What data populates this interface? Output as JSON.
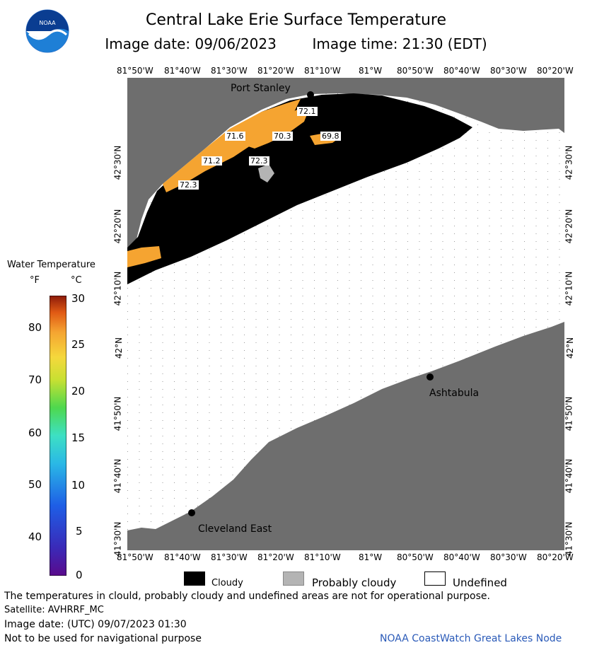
{
  "header": {
    "title": "Central Lake Erie Surface Temperature",
    "subtitle_date": "Image date: 09/06/2023",
    "subtitle_time": "Image time: 21:30 (EDT)",
    "logo_text": "NOAA"
  },
  "map": {
    "longitudes": [
      "81°50'W",
      "81°40'W",
      "81°30'W",
      "81°20'W",
      "81°10'W",
      "81°W",
      "80°50'W",
      "80°40'W",
      "80°30'W",
      "80°20'W"
    ],
    "latitudes": [
      "42°30'N",
      "42°20'N",
      "42°10'N",
      "42°N",
      "41°50'N",
      "41°40'N",
      "41°30'N"
    ],
    "cities": [
      "Port Stanley",
      "Ashtabula",
      "Cleveland East"
    ],
    "temperature_labels": [
      "72.1",
      "71.6",
      "70.3",
      "69.8",
      "71.2",
      "72.3",
      "72.3"
    ]
  },
  "legend": {
    "title": "Water Temperature",
    "unit_f": "°F",
    "unit_c": "°C",
    "fahrenheit_ticks": [
      "80",
      "70",
      "60",
      "50",
      "40"
    ],
    "celsius_ticks": [
      "30",
      "25",
      "20",
      "15",
      "10",
      "5",
      "0"
    ]
  },
  "key": {
    "cloudy": "Cloudy",
    "probably_cloudy": "Probably cloudy",
    "undefined": "Undefined"
  },
  "footer": {
    "disclaimer": "The temperatures in clould, probably cloudy and undefined areas are not for operational purpose.",
    "satellite": "Satellite: AVHRRF_MC",
    "utc_date": "Image date: (UTC) 09/07/2023  01:30",
    "nav": "Not to be used for navigational purpose",
    "credit": "NOAA CoastWatch Great Lakes Node"
  },
  "colors": {
    "land": "#6e6e6e",
    "cloud": "#000000",
    "probably_cloudy": "#b4b4b4",
    "water_warm": "#f5a431"
  }
}
